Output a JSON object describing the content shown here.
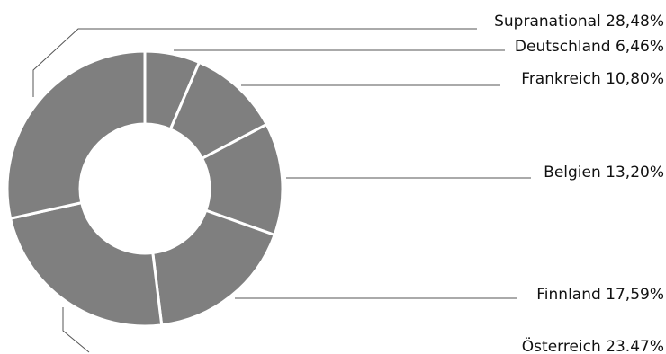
{
  "chart_data": {
    "type": "pie",
    "variant": "donut",
    "title": "",
    "slices": [
      {
        "label": "Deutschland 6,46%",
        "value": 6.46
      },
      {
        "label": "Frankreich 10,80%",
        "value": 10.8
      },
      {
        "label": "Belgien 13,20%",
        "value": 13.2
      },
      {
        "label": "Finnland 17,59%",
        "value": 17.59
      },
      {
        "label": "Österreich 23.47%",
        "value": 23.47
      },
      {
        "label": "Supranational 28,48%",
        "value": 28.48
      }
    ],
    "slice_color": "#7f7f7f",
    "separator_color": "#ffffff",
    "leader_color": "#555555",
    "legend": "leader lines to labels on the right"
  }
}
